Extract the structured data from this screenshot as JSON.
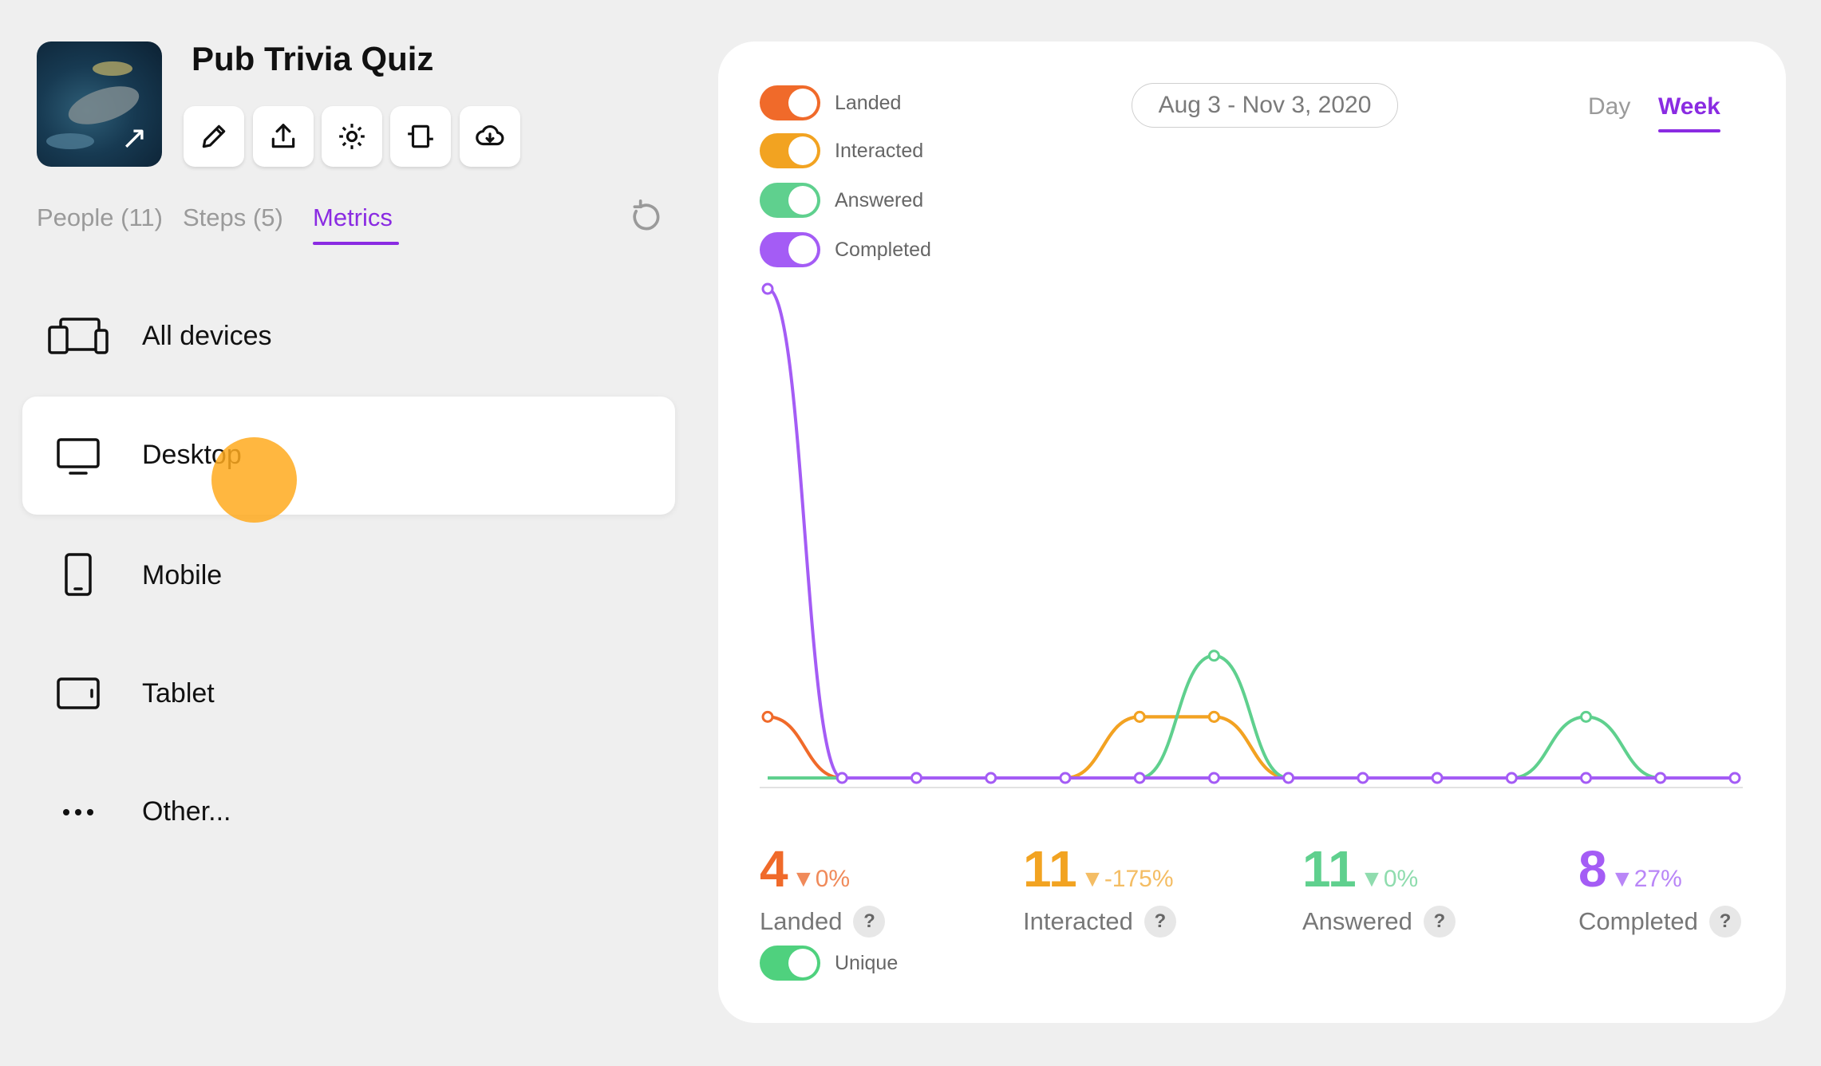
{
  "app": {
    "title": "Pub Trivia Quiz",
    "thumbnail_icon": "external-link-arrow-icon",
    "toolbar": [
      {
        "icon": "pencil-icon"
      },
      {
        "icon": "share-upload-icon"
      },
      {
        "icon": "gear-icon"
      },
      {
        "icon": "embed-icon"
      },
      {
        "icon": "cloud-download-icon"
      }
    ]
  },
  "tabs": [
    {
      "label": "People (11)"
    },
    {
      "label": "Steps (5)"
    },
    {
      "label": "Metrics"
    }
  ],
  "devices": [
    {
      "label": "All devices",
      "icon": "all-devices-icon"
    },
    {
      "label": "Desktop",
      "icon": "desktop-icon",
      "selected": true
    },
    {
      "label": "Mobile",
      "icon": "mobile-icon"
    },
    {
      "label": "Tablet",
      "icon": "tablet-icon"
    },
    {
      "label": "Other...",
      "icon": "more-dots-icon"
    }
  ],
  "legend": [
    {
      "label": "Landed",
      "color": "#f06a2a",
      "on": true
    },
    {
      "label": "Interacted",
      "color": "#f2a321",
      "on": true
    },
    {
      "label": "Answered",
      "color": "#5fd08e",
      "on": true
    },
    {
      "label": "Completed",
      "color": "#a45cf5",
      "on": true
    }
  ],
  "date_range": "Aug 3 - Nov 3, 2020",
  "period": {
    "day": "Day",
    "week": "Week",
    "selected": "Week"
  },
  "stats": [
    {
      "value": "4",
      "delta": "0%",
      "label": "Landed",
      "color": "#f06a2a",
      "delta_color": "#f08a5a"
    },
    {
      "value": "11",
      "delta": "-175%",
      "label": "Interacted",
      "color": "#f2a321",
      "delta_color": "#f4bd64"
    },
    {
      "value": "11",
      "delta": "0%",
      "label": "Answered",
      "color": "#5fd08e",
      "delta_color": "#8fdcae"
    },
    {
      "value": "8",
      "delta": "27%",
      "label": "Completed",
      "color": "#a45cf5",
      "delta_color": "#b986f7"
    }
  ],
  "unique_toggle": {
    "label": "Unique",
    "color": "#4fd17e",
    "on": true
  },
  "chart_data": {
    "type": "line",
    "x": [
      0,
      1,
      2,
      3,
      4,
      5,
      6,
      7,
      8,
      9,
      10,
      11,
      12,
      13
    ],
    "series": [
      {
        "name": "Landed",
        "color": "#f06a2a",
        "values": [
          1,
          0,
          0,
          0,
          0,
          1,
          1,
          0,
          0,
          0,
          0,
          0,
          0,
          0
        ]
      },
      {
        "name": "Interacted",
        "color": "#f2a321",
        "values": [
          0,
          0,
          0,
          0,
          0,
          1,
          1,
          0,
          0,
          0,
          0,
          0,
          0,
          0
        ]
      },
      {
        "name": "Answered",
        "color": "#5fd08e",
        "values": [
          0,
          0,
          0,
          0,
          0,
          0,
          2,
          0,
          0,
          0,
          0,
          1,
          0,
          0
        ]
      },
      {
        "name": "Completed",
        "color": "#a45cf5",
        "values": [
          8,
          0,
          0,
          0,
          0,
          0,
          0,
          0,
          0,
          0,
          0,
          0,
          0,
          0
        ]
      }
    ],
    "ylim": [
      0,
      8
    ],
    "grid": false,
    "legend": "top-left"
  }
}
